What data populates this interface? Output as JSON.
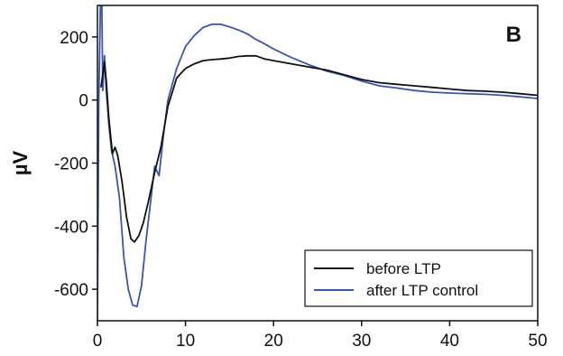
{
  "chart_data": {
    "type": "line",
    "panel_label": "B",
    "title": "",
    "xlabel": "",
    "ylabel": "µV",
    "xlim": [
      0,
      50
    ],
    "ylim": [
      -700,
      300
    ],
    "x_ticks": [
      0,
      10,
      20,
      30,
      40,
      50
    ],
    "y_ticks": [
      -600,
      -400,
      -200,
      0,
      200
    ],
    "grid": false,
    "legend_position": "bottom-right",
    "series": [
      {
        "name": "before LTP",
        "color": "#111111",
        "points": [
          [
            0.4,
            40
          ],
          [
            0.8,
            120
          ],
          [
            1.0,
            60
          ],
          [
            1.3,
            -60
          ],
          [
            1.7,
            -170
          ],
          [
            2.0,
            -150
          ],
          [
            2.3,
            -175
          ],
          [
            2.8,
            -260
          ],
          [
            3.3,
            -370
          ],
          [
            3.8,
            -440
          ],
          [
            4.2,
            -450
          ],
          [
            4.7,
            -430
          ],
          [
            5.2,
            -390
          ],
          [
            5.8,
            -320
          ],
          [
            6.5,
            -230
          ],
          [
            7.2,
            -150
          ],
          [
            8.0,
            -20
          ],
          [
            9.0,
            70
          ],
          [
            10.0,
            100
          ],
          [
            11.0,
            115
          ],
          [
            12.0,
            125
          ],
          [
            13.0,
            128
          ],
          [
            14.0,
            130
          ],
          [
            15.0,
            133
          ],
          [
            16.0,
            138
          ],
          [
            17.0,
            140
          ],
          [
            18.0,
            140
          ],
          [
            19.0,
            130
          ],
          [
            20.0,
            125
          ],
          [
            22.0,
            115
          ],
          [
            24.0,
            105
          ],
          [
            26.0,
            95
          ],
          [
            28.0,
            80
          ],
          [
            30.0,
            65
          ],
          [
            32.0,
            55
          ],
          [
            34.0,
            50
          ],
          [
            36.0,
            45
          ],
          [
            38.0,
            40
          ],
          [
            40.0,
            35
          ],
          [
            42.0,
            30
          ],
          [
            44.0,
            28
          ],
          [
            46.0,
            25
          ],
          [
            48.0,
            20
          ],
          [
            50.0,
            15
          ]
        ]
      },
      {
        "name": "after LTP control",
        "color": "#3a55b0",
        "points": [
          [
            0.0,
            -700
          ],
          [
            0.15,
            0
          ],
          [
            0.35,
            320
          ],
          [
            0.5,
            300
          ],
          [
            0.6,
            30
          ],
          [
            0.8,
            140
          ],
          [
            1.0,
            30
          ],
          [
            1.3,
            -80
          ],
          [
            1.6,
            -160
          ],
          [
            2.0,
            -210
          ],
          [
            2.5,
            -310
          ],
          [
            3.0,
            -500
          ],
          [
            3.5,
            -600
          ],
          [
            4.0,
            -650
          ],
          [
            4.5,
            -655
          ],
          [
            5.0,
            -590
          ],
          [
            5.5,
            -450
          ],
          [
            6.0,
            -330
          ],
          [
            6.5,
            -210
          ],
          [
            7.0,
            -240
          ],
          [
            7.5,
            -110
          ],
          [
            8.0,
            0
          ],
          [
            9.0,
            100
          ],
          [
            10.0,
            170
          ],
          [
            11.0,
            205
          ],
          [
            12.0,
            230
          ],
          [
            13.0,
            240
          ],
          [
            14.0,
            240
          ],
          [
            15.0,
            232
          ],
          [
            16.0,
            222
          ],
          [
            17.0,
            210
          ],
          [
            18.0,
            192
          ],
          [
            19.0,
            178
          ],
          [
            20.0,
            162
          ],
          [
            22.0,
            135
          ],
          [
            24.0,
            112
          ],
          [
            26.0,
            92
          ],
          [
            28.0,
            78
          ],
          [
            30.0,
            60
          ],
          [
            32.0,
            45
          ],
          [
            34.0,
            38
          ],
          [
            36.0,
            30
          ],
          [
            38.0,
            25
          ],
          [
            40.0,
            22
          ],
          [
            42.0,
            20
          ],
          [
            44.0,
            18
          ],
          [
            46.0,
            15
          ],
          [
            48.0,
            10
          ],
          [
            50.0,
            5
          ]
        ]
      }
    ]
  }
}
